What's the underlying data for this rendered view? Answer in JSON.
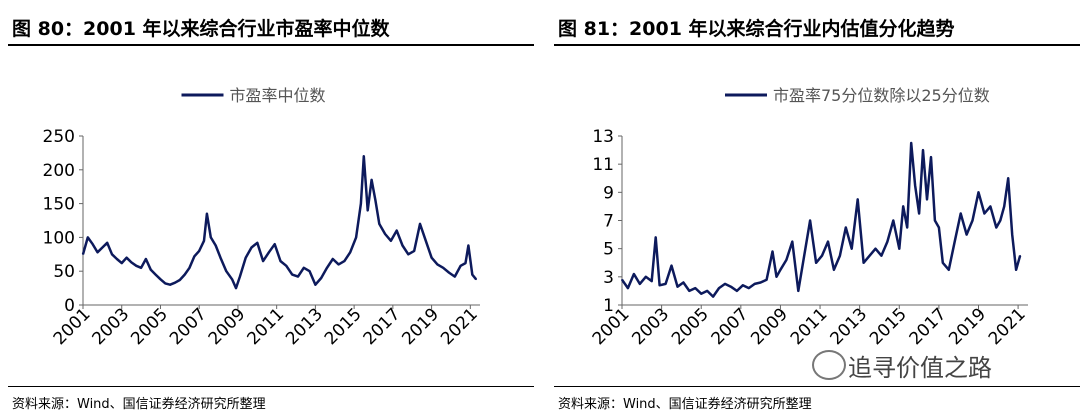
{
  "panels": [
    {
      "title": "图 80：2001 年以来综合行业市盈率中位数",
      "source": "资料来源：Wind、国信证券经济研究所整理"
    },
    {
      "title": "图 81：2001 年以来综合行业内估值分化趋势",
      "source": "资料来源：Wind、国信证券经济研究所整理"
    }
  ],
  "watermark": "追寻价值之路",
  "chart_data": [
    {
      "type": "line",
      "legend": "top-center",
      "series": [
        {
          "name": "市盈率中位数",
          "color": "#0d1a5c"
        }
      ],
      "x": [
        2001.0,
        2001.25,
        2001.5,
        2001.75,
        2002.0,
        2002.25,
        2002.5,
        2002.75,
        2003.0,
        2003.25,
        2003.5,
        2003.75,
        2004.0,
        2004.25,
        2004.5,
        2004.75,
        2005.0,
        2005.25,
        2005.5,
        2005.75,
        2006.0,
        2006.25,
        2006.5,
        2006.75,
        2007.0,
        2007.25,
        2007.4,
        2007.6,
        2007.85,
        2008.1,
        2008.4,
        2008.7,
        2008.9,
        2009.1,
        2009.4,
        2009.7,
        2010.0,
        2010.3,
        2010.6,
        2010.9,
        2011.2,
        2011.5,
        2011.8,
        2012.1,
        2012.4,
        2012.7,
        2013.0,
        2013.3,
        2013.6,
        2013.9,
        2014.2,
        2014.5,
        2014.8,
        2015.1,
        2015.35,
        2015.5,
        2015.7,
        2015.9,
        2016.1,
        2016.3,
        2016.6,
        2016.9,
        2017.2,
        2017.5,
        2017.8,
        2018.1,
        2018.4,
        2018.7,
        2019.0,
        2019.3,
        2019.6,
        2019.9,
        2020.2,
        2020.5,
        2020.75,
        2020.9,
        2021.1,
        2021.3
      ],
      "y": [
        75,
        100,
        90,
        78,
        85,
        92,
        75,
        68,
        62,
        70,
        63,
        58,
        55,
        68,
        52,
        45,
        38,
        32,
        30,
        33,
        37,
        45,
        55,
        72,
        80,
        95,
        135,
        100,
        88,
        70,
        50,
        38,
        25,
        42,
        70,
        85,
        92,
        65,
        78,
        90,
        65,
        58,
        45,
        42,
        55,
        50,
        30,
        40,
        55,
        68,
        60,
        65,
        78,
        100,
        150,
        220,
        140,
        185,
        155,
        120,
        105,
        95,
        110,
        88,
        75,
        80,
        120,
        95,
        70,
        60,
        55,
        48,
        42,
        58,
        62,
        88,
        45,
        38
      ],
      "xlim": [
        2001,
        2021.5
      ],
      "ylim": [
        0,
        250
      ],
      "yticks": [
        "0",
        "50",
        "100",
        "150",
        "200",
        "250"
      ],
      "xticks": [
        "2001",
        "2003",
        "2005",
        "2007",
        "2009",
        "2011",
        "2013",
        "2015",
        "2017",
        "2019",
        "2021"
      ]
    },
    {
      "type": "line",
      "legend": "top-center",
      "series": [
        {
          "name": "市盈率75分位数除以25分位数",
          "color": "#0d1a5c"
        }
      ],
      "x": [
        2001.0,
        2001.3,
        2001.6,
        2001.9,
        2002.2,
        2002.5,
        2002.7,
        2002.9,
        2003.2,
        2003.5,
        2003.8,
        2004.1,
        2004.4,
        2004.7,
        2005.0,
        2005.3,
        2005.6,
        2005.9,
        2006.2,
        2006.5,
        2006.8,
        2007.1,
        2007.4,
        2007.7,
        2008.0,
        2008.3,
        2008.6,
        2008.8,
        2009.0,
        2009.3,
        2009.6,
        2009.9,
        2010.2,
        2010.5,
        2010.8,
        2011.1,
        2011.4,
        2011.7,
        2012.0,
        2012.3,
        2012.6,
        2012.9,
        2013.2,
        2013.5,
        2013.8,
        2014.1,
        2014.4,
        2014.7,
        2015.0,
        2015.2,
        2015.4,
        2015.6,
        2015.8,
        2016.0,
        2016.2,
        2016.4,
        2016.6,
        2016.8,
        2017.0,
        2017.2,
        2017.5,
        2017.8,
        2018.1,
        2018.4,
        2018.7,
        2019.0,
        2019.3,
        2019.6,
        2019.9,
        2020.1,
        2020.3,
        2020.5,
        2020.7,
        2020.9,
        2021.1
      ],
      "y": [
        2.8,
        2.2,
        3.2,
        2.5,
        3.0,
        2.7,
        5.8,
        2.4,
        2.5,
        3.8,
        2.3,
        2.6,
        2.0,
        2.2,
        1.8,
        2.0,
        1.6,
        2.2,
        2.5,
        2.3,
        2.0,
        2.4,
        2.2,
        2.5,
        2.6,
        2.8,
        4.8,
        3.0,
        3.5,
        4.2,
        5.5,
        2.0,
        4.5,
        7.0,
        4.0,
        4.5,
        5.5,
        3.5,
        4.5,
        6.5,
        5.0,
        8.5,
        4.0,
        4.5,
        5.0,
        4.5,
        5.5,
        7.0,
        5.0,
        8.0,
        6.5,
        12.5,
        9.5,
        7.5,
        12.0,
        8.5,
        11.5,
        7.0,
        6.5,
        4.0,
        3.5,
        5.5,
        7.5,
        6.0,
        7.0,
        9.0,
        7.5,
        8.0,
        6.5,
        7.0,
        8.0,
        10.0,
        6.0,
        3.5,
        4.5
      ],
      "xlim": [
        2001,
        2021.5
      ],
      "ylim": [
        1,
        13
      ],
      "yticks": [
        "1",
        "3",
        "5",
        "7",
        "9",
        "11",
        "13"
      ],
      "xticks": [
        "2001",
        "2003",
        "2005",
        "2007",
        "2009",
        "2011",
        "2013",
        "2015",
        "2017",
        "2019",
        "2021"
      ]
    }
  ]
}
